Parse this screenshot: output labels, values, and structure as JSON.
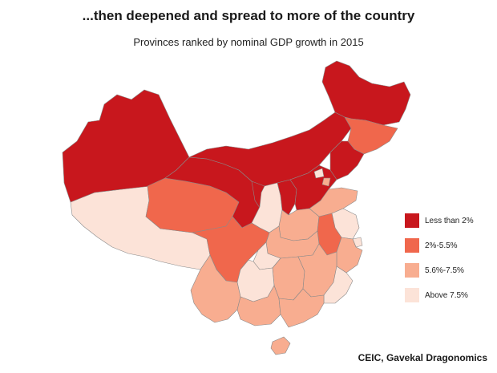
{
  "header": {
    "title": "...then deepened and spread to more of the country",
    "subtitle": "Provinces ranked by nominal GDP growth in 2015"
  },
  "legend": {
    "items": [
      {
        "label": "Less than 2%",
        "color": "#c8171d"
      },
      {
        "label": "2%-5.5%",
        "color": "#f0674c"
      },
      {
        "label": "5.6%-7.5%",
        "color": "#f8ad90"
      },
      {
        "label": "Above 7.5%",
        "color": "#fce3d8"
      }
    ]
  },
  "source": "CEIC, Gavekal Dragonomics"
}
